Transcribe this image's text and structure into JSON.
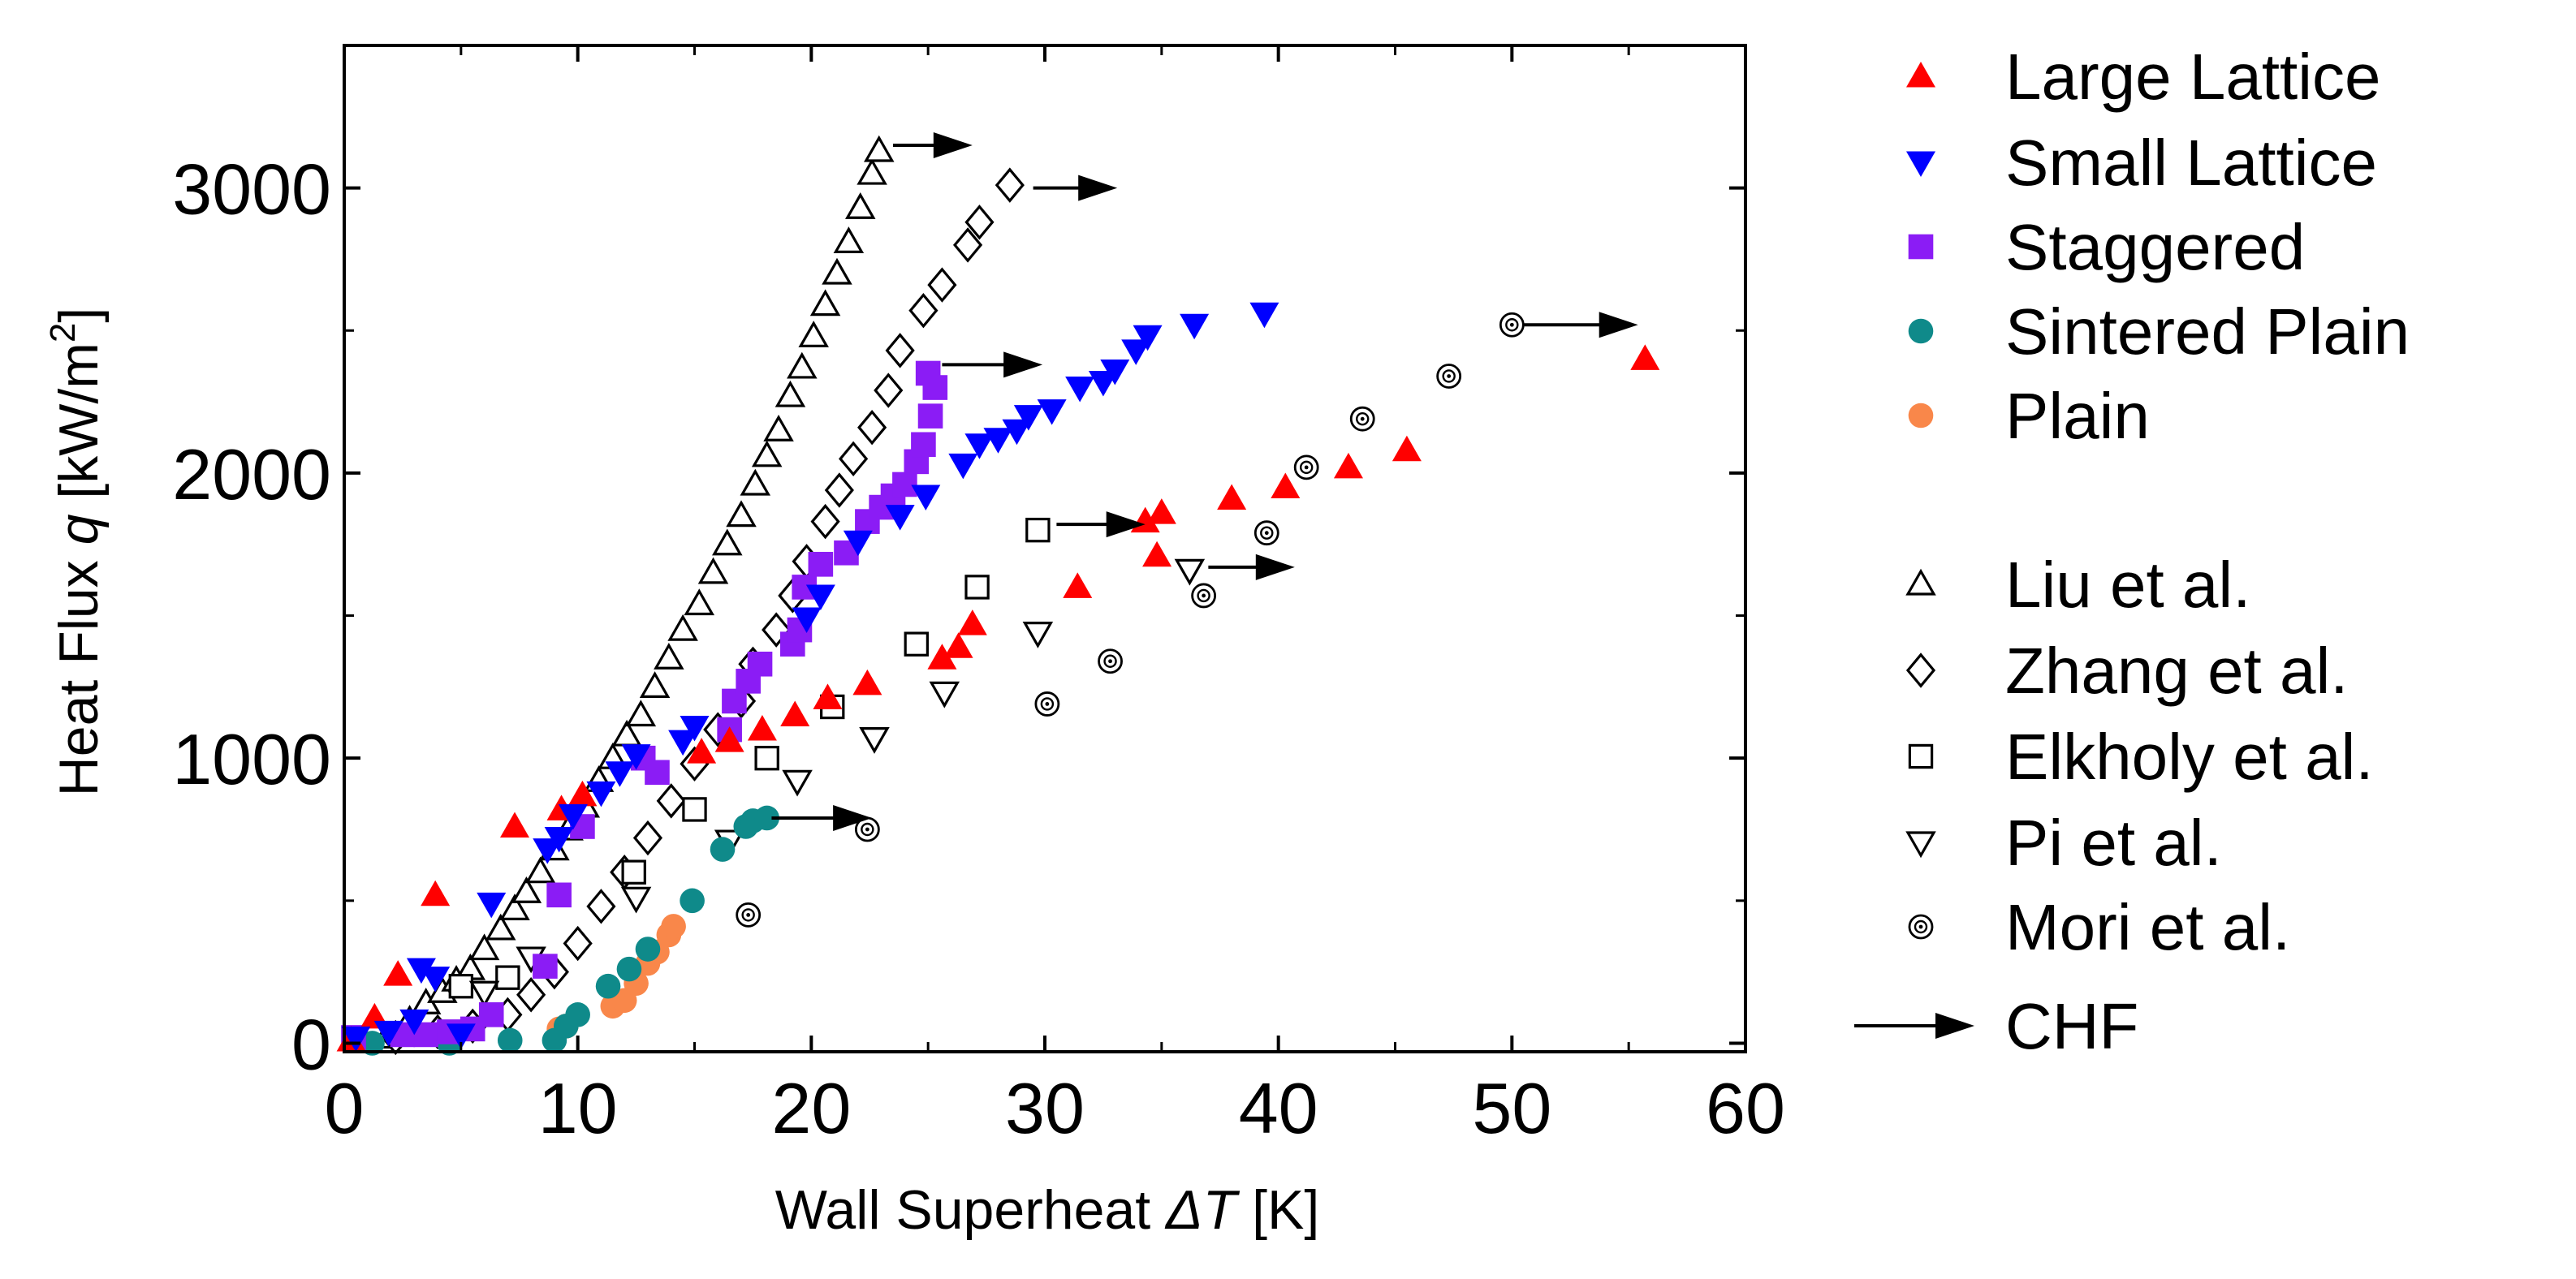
{
  "chart_data": {
    "type": "scatter",
    "xlabel": "Wall Superheat  ΔT [K]",
    "xlabel_parts": [
      "Wall Superheat  ",
      "Δ",
      "T",
      " [K]"
    ],
    "ylabel_parts": [
      "Heat Flux ",
      "q",
      " [kW/m",
      "2",
      "]"
    ],
    "xlim": [
      0,
      60
    ],
    "ylim": [
      -30,
      3500
    ],
    "xticks": [
      0,
      10,
      20,
      30,
      40,
      50,
      60
    ],
    "yticks": [
      0,
      1000,
      2000,
      3000
    ],
    "grid": false,
    "legend": "right",
    "series": [
      {
        "name": "Large Lattice",
        "marker": "triangle-up",
        "filled": true,
        "color": "#ff0000",
        "points": [
          [
            0.3,
            10
          ],
          [
            1.3,
            90
          ],
          [
            2.3,
            240
          ],
          [
            3.9,
            520
          ],
          [
            7.3,
            760
          ],
          [
            9.3,
            820
          ],
          [
            10.2,
            870
          ],
          [
            15.3,
            1020
          ],
          [
            16.5,
            1060
          ],
          [
            17.9,
            1100
          ],
          [
            19.3,
            1150
          ],
          [
            20.7,
            1210
          ],
          [
            22.4,
            1260
          ],
          [
            25.6,
            1350
          ],
          [
            26.3,
            1390
          ],
          [
            26.9,
            1470
          ],
          [
            31.4,
            1600
          ],
          [
            34.3,
            1830
          ],
          [
            35.0,
            1860
          ],
          [
            34.8,
            1710
          ],
          [
            38,
            1910
          ],
          [
            40.3,
            1950
          ],
          [
            43,
            2020
          ],
          [
            45.5,
            2080
          ],
          [
            55.7,
            2400
          ]
        ]
      },
      {
        "name": "Small Lattice",
        "marker": "triangle-down",
        "filled": true,
        "color": "#0000ff",
        "points": [
          [
            0.5,
            20
          ],
          [
            1.9,
            40
          ],
          [
            3,
            80
          ],
          [
            5,
            30
          ],
          [
            3.3,
            260
          ],
          [
            3.9,
            230
          ],
          [
            6.3,
            490
          ],
          [
            8.7,
            680
          ],
          [
            9.2,
            720
          ],
          [
            9.8,
            800
          ],
          [
            11,
            880
          ],
          [
            11.8,
            950
          ],
          [
            12.5,
            1010
          ],
          [
            14.5,
            1060
          ],
          [
            15,
            1110
          ],
          [
            19.8,
            1490
          ],
          [
            20.4,
            1570
          ],
          [
            22,
            1760
          ],
          [
            23.8,
            1850
          ],
          [
            24.9,
            1920
          ],
          [
            26.5,
            2030
          ],
          [
            27.2,
            2100
          ],
          [
            28,
            2120
          ],
          [
            28.8,
            2150
          ],
          [
            29.3,
            2200
          ],
          [
            30.3,
            2220
          ],
          [
            31.5,
            2300
          ],
          [
            32.5,
            2320
          ],
          [
            33,
            2360
          ],
          [
            33.9,
            2430
          ],
          [
            34.4,
            2480
          ],
          [
            36.4,
            2520
          ],
          [
            39.4,
            2560
          ]
        ]
      },
      {
        "name": "Staggered",
        "marker": "square",
        "filled": true,
        "color": "#8b1cf5",
        "points": [
          [
            0.4,
            20
          ],
          [
            2.5,
            30
          ],
          [
            3.5,
            30
          ],
          [
            4.5,
            40
          ],
          [
            5.5,
            50
          ],
          [
            6.3,
            100
          ],
          [
            8.6,
            270
          ],
          [
            9.2,
            520
          ],
          [
            10.2,
            760
          ],
          [
            12.8,
            1000
          ],
          [
            13.4,
            950
          ],
          [
            16.5,
            1100
          ],
          [
            16.7,
            1200
          ],
          [
            17.3,
            1270
          ],
          [
            17.8,
            1330
          ],
          [
            19.2,
            1400
          ],
          [
            19.5,
            1450
          ],
          [
            19.7,
            1600
          ],
          [
            20.4,
            1680
          ],
          [
            21.5,
            1720
          ],
          [
            22.4,
            1830
          ],
          [
            23,
            1880
          ],
          [
            23.5,
            1920
          ],
          [
            24,
            1960
          ],
          [
            24.5,
            2040
          ],
          [
            24.8,
            2100
          ],
          [
            25.1,
            2200
          ],
          [
            25.3,
            2300
          ],
          [
            25,
            2350
          ]
        ]
      },
      {
        "name": "Sintered Plain",
        "marker": "circle",
        "filled": true,
        "color": "#0f8a8a",
        "points": [
          [
            1.2,
            0
          ],
          [
            4.5,
            0
          ],
          [
            7.1,
            10
          ],
          [
            9,
            10
          ],
          [
            9.5,
            60
          ],
          [
            10,
            100
          ],
          [
            11.3,
            200
          ],
          [
            12.2,
            260
          ],
          [
            13,
            330
          ],
          [
            14.9,
            500
          ],
          [
            16.2,
            680
          ],
          [
            17.2,
            760
          ],
          [
            17.5,
            780
          ],
          [
            18.1,
            790
          ]
        ]
      },
      {
        "name": "Plain",
        "marker": "circle",
        "filled": true,
        "color": "#f9874a",
        "points": [
          [
            9.2,
            50
          ],
          [
            9.5,
            60
          ],
          [
            11.5,
            130
          ],
          [
            12,
            150
          ],
          [
            12.5,
            210
          ],
          [
            13,
            280
          ],
          [
            13.4,
            320
          ],
          [
            13.9,
            380
          ],
          [
            14.1,
            410
          ]
        ]
      },
      {
        "name": "Liu et al.",
        "marker": "triangle-up",
        "filled": false,
        "color": "#000000",
        "points": [
          [
            1.8,
            20
          ],
          [
            2.8,
            80
          ],
          [
            3.5,
            140
          ],
          [
            4.2,
            180
          ],
          [
            4.8,
            220
          ],
          [
            5.4,
            260
          ],
          [
            6,
            330
          ],
          [
            6.7,
            400
          ],
          [
            7.3,
            470
          ],
          [
            7.8,
            530
          ],
          [
            8.4,
            600
          ],
          [
            9,
            680
          ],
          [
            9.6,
            750
          ],
          [
            10.3,
            830
          ],
          [
            10.9,
            920
          ],
          [
            11.5,
            1000
          ],
          [
            12.1,
            1080
          ],
          [
            12.7,
            1150
          ],
          [
            13.3,
            1250
          ],
          [
            13.9,
            1350
          ],
          [
            14.5,
            1450
          ],
          [
            15.2,
            1540
          ],
          [
            15.8,
            1650
          ],
          [
            16.4,
            1750
          ],
          [
            17,
            1850
          ],
          [
            17.6,
            1960
          ],
          [
            18.1,
            2060
          ],
          [
            18.6,
            2150
          ],
          [
            19.1,
            2270
          ],
          [
            19.6,
            2370
          ],
          [
            20.1,
            2480
          ],
          [
            20.6,
            2590
          ],
          [
            21.1,
            2700
          ],
          [
            21.6,
            2810
          ],
          [
            22.1,
            2930
          ],
          [
            22.6,
            3050
          ],
          [
            22.9,
            3130
          ]
        ]
      },
      {
        "name": "Zhang et al.",
        "marker": "diamond",
        "filled": false,
        "color": "#000000",
        "points": [
          [
            2.2,
            20
          ],
          [
            4,
            40
          ],
          [
            5.5,
            60
          ],
          [
            7,
            100
          ],
          [
            8,
            170
          ],
          [
            9,
            250
          ],
          [
            10,
            350
          ],
          [
            11,
            480
          ],
          [
            12,
            600
          ],
          [
            13,
            720
          ],
          [
            14,
            850
          ],
          [
            15,
            980
          ],
          [
            16,
            1100
          ],
          [
            17,
            1200
          ],
          [
            17.5,
            1330
          ],
          [
            18.5,
            1450
          ],
          [
            19.2,
            1570
          ],
          [
            19.8,
            1690
          ],
          [
            20.6,
            1830
          ],
          [
            21.2,
            1940
          ],
          [
            21.8,
            2050
          ],
          [
            22.6,
            2160
          ],
          [
            23.3,
            2290
          ],
          [
            23.8,
            2430
          ],
          [
            24.8,
            2570
          ],
          [
            25.6,
            2660
          ],
          [
            26.7,
            2800
          ],
          [
            27.2,
            2880
          ],
          [
            28.5,
            3010
          ]
        ]
      },
      {
        "name": "Elkholy et al.",
        "marker": "square",
        "filled": false,
        "color": "#000000",
        "points": [
          [
            5,
            200
          ],
          [
            7,
            230
          ],
          [
            12.4,
            600
          ],
          [
            15,
            820
          ],
          [
            18.1,
            1000
          ],
          [
            20.9,
            1180
          ],
          [
            24.5,
            1400
          ],
          [
            27.1,
            1600
          ],
          [
            29.7,
            1800
          ]
        ]
      },
      {
        "name": "Pi et al.",
        "marker": "triangle-down",
        "filled": false,
        "color": "#000000",
        "points": [
          [
            6,
            180
          ],
          [
            8,
            300
          ],
          [
            12.5,
            510
          ],
          [
            16.5,
            710
          ],
          [
            19.4,
            920
          ],
          [
            22.7,
            1070
          ],
          [
            25.7,
            1230
          ],
          [
            29.7,
            1440
          ],
          [
            36.2,
            1660
          ]
        ]
      },
      {
        "name": "Mori et al.",
        "marker": "target",
        "filled": false,
        "color": "#000000",
        "points": [
          [
            17.3,
            450
          ],
          [
            22.4,
            750
          ],
          [
            30.1,
            1190
          ],
          [
            32.8,
            1340
          ],
          [
            36.8,
            1570
          ],
          [
            39.5,
            1790
          ],
          [
            41.2,
            2020
          ],
          [
            43.6,
            2190
          ],
          [
            47.3,
            2340
          ],
          [
            50,
            2520
          ]
        ]
      }
    ],
    "chf_label": "CHF",
    "chf_arrows": [
      [
        23.5,
        3150,
        26.9
      ],
      [
        29.5,
        3000,
        33.1
      ],
      [
        25.6,
        2380,
        29.9
      ],
      [
        30.5,
        1820,
        34.3
      ],
      [
        37,
        1670,
        40.7
      ],
      [
        18.3,
        790,
        22.6
      ],
      [
        50.5,
        2520,
        55.4
      ]
    ]
  }
}
